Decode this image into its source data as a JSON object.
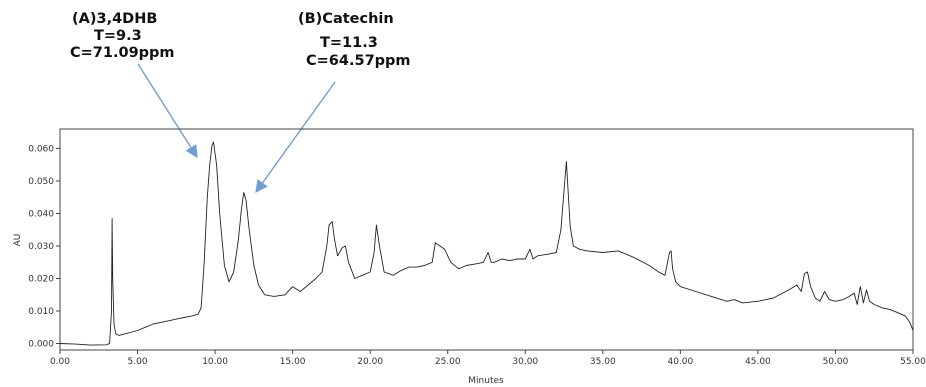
{
  "chart_data": {
    "type": "line",
    "title": "",
    "xlabel": "Minutes",
    "ylabel": "AU",
    "xlim": [
      0,
      55
    ],
    "ylim": [
      -0.002,
      0.066
    ],
    "x_ticks": [
      "0.00",
      "5.00",
      "10.00",
      "15.00",
      "20.00",
      "25.00",
      "30.00",
      "35.00",
      "40.00",
      "45.00",
      "50.00",
      "55.00"
    ],
    "y_ticks": [
      "0.000",
      "0.010",
      "0.020",
      "0.030",
      "0.040",
      "0.050",
      "0.060"
    ],
    "line_color": "#222222",
    "arrow_color": "#6f9fd0",
    "grid": false,
    "series": [
      {
        "x": [
          0.0,
          1.0,
          2.0,
          3.0,
          3.2,
          3.32,
          3.36,
          3.4,
          3.48,
          3.6,
          3.8,
          4.2,
          5.0,
          5.5,
          6.0,
          6.5,
          7.0,
          7.5,
          8.0,
          8.5,
          8.9,
          9.1,
          9.3,
          9.5,
          9.65,
          9.8,
          9.9,
          10.1,
          10.3,
          10.6,
          10.9,
          11.2,
          11.5,
          11.7,
          11.85,
          12.0,
          12.2,
          12.5,
          12.8,
          13.2,
          13.8,
          14.5,
          15.0,
          15.5,
          16.0,
          16.5,
          16.9,
          17.2,
          17.35,
          17.55,
          17.7,
          17.9,
          18.2,
          18.4,
          18.6,
          19.0,
          19.5,
          20.0,
          20.25,
          20.4,
          20.6,
          20.9,
          21.5,
          22.0,
          22.5,
          23.0,
          23.5,
          24.0,
          24.2,
          24.5,
          24.8,
          25.2,
          25.7,
          26.2,
          26.8,
          27.3,
          27.6,
          27.8,
          28.0,
          28.5,
          29.0,
          29.5,
          30.0,
          30.3,
          30.5,
          30.8,
          31.5,
          32.0,
          32.3,
          32.55,
          32.65,
          32.75,
          32.9,
          33.1,
          33.5,
          34.0,
          35.0,
          36.0,
          37.0,
          38.0,
          38.6,
          39.0,
          39.3,
          39.4,
          39.5,
          39.7,
          40.0,
          41.0,
          42.0,
          43.0,
          43.5,
          44.0,
          45.0,
          46.0,
          47.0,
          47.5,
          47.8,
          48.0,
          48.2,
          48.4,
          48.7,
          49.0,
          49.3,
          49.6,
          50.0,
          50.5,
          50.9,
          51.2,
          51.4,
          51.6,
          51.8,
          52.0,
          52.2,
          52.5,
          53.0,
          53.5,
          54.0,
          54.5,
          54.8,
          55.0
        ],
        "y": [
          0.0,
          -0.0002,
          -0.0005,
          -0.0004,
          0.0,
          0.01,
          0.0385,
          0.02,
          0.006,
          0.003,
          0.0025,
          0.003,
          0.004,
          0.005,
          0.006,
          0.0065,
          0.007,
          0.0075,
          0.008,
          0.0085,
          0.009,
          0.011,
          0.025,
          0.045,
          0.055,
          0.061,
          0.062,
          0.055,
          0.04,
          0.024,
          0.019,
          0.022,
          0.032,
          0.0415,
          0.0465,
          0.044,
          0.035,
          0.024,
          0.018,
          0.015,
          0.0145,
          0.015,
          0.0175,
          0.016,
          0.018,
          0.02,
          0.022,
          0.03,
          0.0365,
          0.0375,
          0.032,
          0.027,
          0.0295,
          0.03,
          0.025,
          0.02,
          0.021,
          0.022,
          0.028,
          0.0365,
          0.03,
          0.022,
          0.021,
          0.0225,
          0.0235,
          0.0235,
          0.024,
          0.025,
          0.031,
          0.03,
          0.029,
          0.025,
          0.023,
          0.024,
          0.0245,
          0.025,
          0.028,
          0.025,
          0.025,
          0.026,
          0.0255,
          0.026,
          0.026,
          0.029,
          0.026,
          0.027,
          0.0275,
          0.028,
          0.035,
          0.05,
          0.056,
          0.048,
          0.036,
          0.03,
          0.029,
          0.0285,
          0.028,
          0.0285,
          0.0265,
          0.024,
          0.022,
          0.021,
          0.028,
          0.0285,
          0.023,
          0.019,
          0.0175,
          0.016,
          0.0145,
          0.013,
          0.0135,
          0.0125,
          0.013,
          0.014,
          0.0165,
          0.018,
          0.016,
          0.0215,
          0.022,
          0.0175,
          0.014,
          0.013,
          0.016,
          0.0135,
          0.013,
          0.0135,
          0.0145,
          0.0155,
          0.012,
          0.0175,
          0.0125,
          0.0165,
          0.013,
          0.012,
          0.011,
          0.0105,
          0.0095,
          0.0085,
          0.0065,
          0.004
        ]
      }
    ],
    "annotations": [
      {
        "lines": [
          "(A)3,4DHB",
          "T=9.3",
          "C=71.09ppm"
        ],
        "points_to_x": 9.2,
        "points_to_y": 0.0565
      },
      {
        "lines": [
          "(B)Catechin",
          "T=11.3",
          "C=64.57ppm"
        ],
        "points_to_x": 12.9,
        "points_to_y": 0.0465
      }
    ]
  }
}
